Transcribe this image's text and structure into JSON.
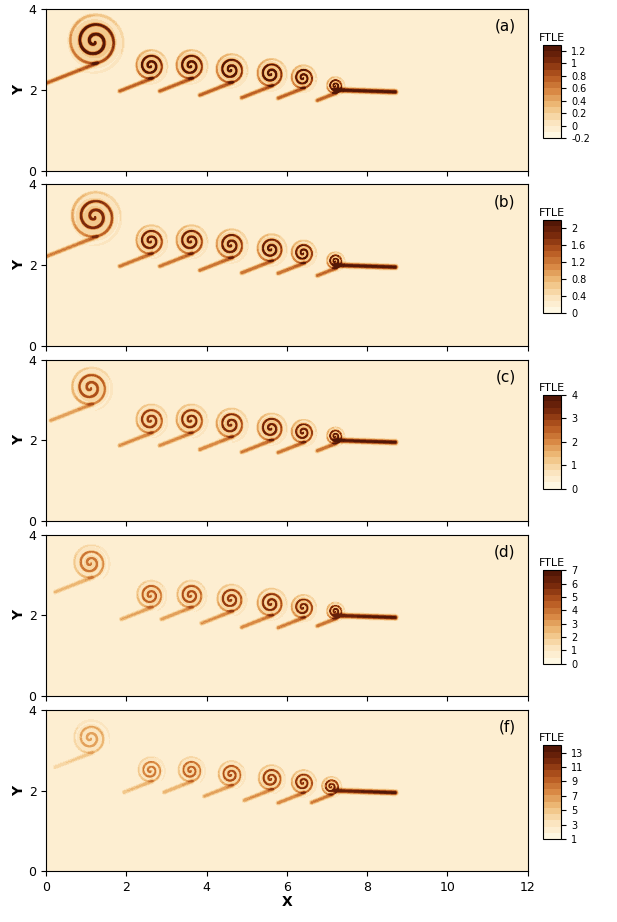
{
  "chart_data": [
    {
      "type": "heatmap",
      "annotation": "(a)",
      "y_label": "Y",
      "tick_labels": "y",
      "xlim": [
        0,
        12
      ],
      "ylim": [
        0,
        4
      ],
      "xticks": [
        0,
        2,
        4,
        6,
        8,
        10,
        12
      ],
      "yticks": [
        0,
        2,
        4
      ],
      "colorbar_title": "FTLE",
      "clim": [
        -0.2,
        1.3
      ],
      "colorbar_ticks": [
        -0.2,
        0,
        0.2,
        0.4,
        0.6,
        0.8,
        1,
        1.2
      ],
      "vortex_x": [
        1.2,
        2.6,
        3.6,
        4.6,
        5.6,
        6.4,
        7.2
      ],
      "vortex_y": [
        3.2,
        2.6,
        2.6,
        2.5,
        2.4,
        2.3,
        2.1
      ],
      "vortex_radius": [
        0.6,
        0.35,
        0.35,
        0.35,
        0.33,
        0.28,
        0.2
      ],
      "tail_x": [
        7.2,
        8.7
      ],
      "tail_y": [
        2.0,
        1.95
      ]
    },
    {
      "type": "heatmap",
      "annotation": "(b)",
      "y_label": "Y",
      "tick_labels": "y",
      "xlim": [
        0,
        12
      ],
      "ylim": [
        0,
        4
      ],
      "xticks": [
        0,
        2,
        4,
        6,
        8,
        10,
        12
      ],
      "yticks": [
        0,
        2,
        4
      ],
      "colorbar_title": "FTLE",
      "clim": [
        0,
        2.2
      ],
      "colorbar_ticks": [
        0,
        0.4,
        0.8,
        1.2,
        1.6,
        2
      ],
      "vortex_x": [
        1.2,
        2.6,
        3.6,
        4.6,
        5.6,
        6.4,
        7.2
      ],
      "vortex_y": [
        3.2,
        2.6,
        2.6,
        2.5,
        2.4,
        2.3,
        2.1
      ],
      "vortex_radius": [
        0.55,
        0.35,
        0.35,
        0.35,
        0.33,
        0.28,
        0.2
      ],
      "tail_x": [
        7.2,
        8.7
      ],
      "tail_y": [
        2.0,
        1.95
      ]
    },
    {
      "type": "heatmap",
      "annotation": "(c)",
      "y_label": "Y",
      "tick_labels": "y",
      "xlim": [
        0,
        12
      ],
      "ylim": [
        0,
        4
      ],
      "xticks": [
        0,
        2,
        4,
        6,
        8,
        10,
        12
      ],
      "yticks": [
        0,
        2,
        4
      ],
      "colorbar_title": "FTLE",
      "clim": [
        0,
        4
      ],
      "colorbar_ticks": [
        0,
        1,
        2,
        3,
        4
      ],
      "vortex_x": [
        1.1,
        2.6,
        3.6,
        4.6,
        5.6,
        6.4,
        7.2
      ],
      "vortex_y": [
        3.3,
        2.5,
        2.5,
        2.4,
        2.3,
        2.2,
        2.1
      ],
      "vortex_radius": [
        0.45,
        0.35,
        0.35,
        0.35,
        0.33,
        0.28,
        0.2
      ],
      "tail_x": [
        7.2,
        8.7
      ],
      "tail_y": [
        2.0,
        1.95
      ]
    },
    {
      "type": "heatmap",
      "annotation": "(d)",
      "y_label": "Y",
      "tick_labels": "y",
      "xlim": [
        0,
        12
      ],
      "ylim": [
        0,
        4
      ],
      "xticks": [
        0,
        2,
        4,
        6,
        8,
        10,
        12
      ],
      "yticks": [
        0,
        2,
        4
      ],
      "colorbar_title": "FTLE",
      "clim": [
        0,
        7
      ],
      "colorbar_ticks": [
        0,
        1,
        2,
        3,
        4,
        5,
        6,
        7
      ],
      "vortex_x": [
        1.1,
        2.6,
        3.6,
        4.6,
        5.6,
        6.4,
        7.2
      ],
      "vortex_y": [
        3.3,
        2.5,
        2.5,
        2.4,
        2.3,
        2.2,
        2.1
      ],
      "vortex_radius": [
        0.4,
        0.33,
        0.33,
        0.33,
        0.33,
        0.28,
        0.2
      ],
      "tail_x": [
        7.2,
        8.7
      ],
      "tail_y": [
        2.0,
        1.95
      ]
    },
    {
      "type": "heatmap",
      "annotation": "(f)",
      "x_label": "X",
      "y_label": "Y",
      "xlim": [
        0,
        12
      ],
      "ylim": [
        0,
        4
      ],
      "xticks": [
        0,
        2,
        4,
        6,
        8,
        10,
        12
      ],
      "yticks": [
        0,
        2,
        4
      ],
      "colorbar_title": "FTLE",
      "clim": [
        1,
        14
      ],
      "colorbar_ticks": [
        1,
        3,
        5,
        7,
        9,
        11,
        13
      ],
      "vortex_x": [
        1.1,
        2.6,
        3.6,
        4.6,
        5.6,
        6.4,
        7.1
      ],
      "vortex_y": [
        3.3,
        2.5,
        2.5,
        2.4,
        2.3,
        2.2,
        2.1
      ],
      "vortex_radius": [
        0.4,
        0.3,
        0.3,
        0.3,
        0.3,
        0.28,
        0.22
      ],
      "tail_x": [
        7.2,
        8.7
      ],
      "tail_y": [
        2.0,
        1.95
      ]
    }
  ]
}
